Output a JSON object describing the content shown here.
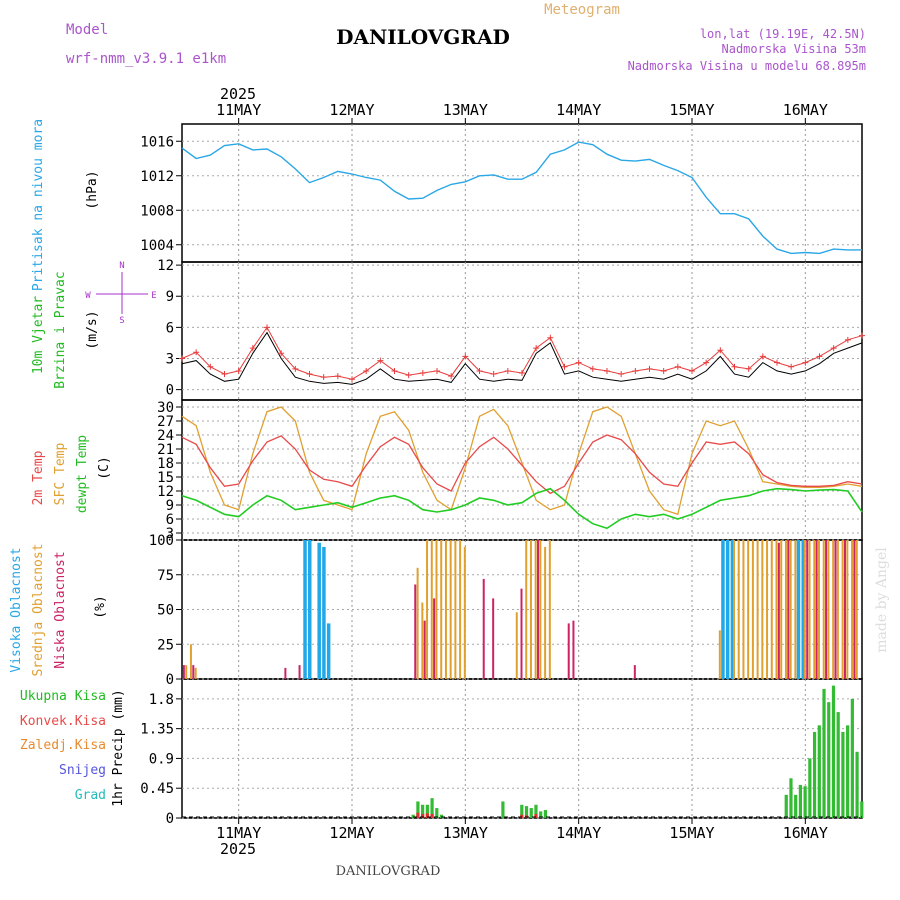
{
  "header": {
    "model_label": "Model",
    "model_name": "wrf-nmm_v3.9.1 e1km",
    "station": "DANILOVGRAD",
    "product": "Meteogram",
    "lonlat": "lon,lat (19.19E, 42.5N)",
    "elevation": "Nadmorska Visina 53m",
    "model_elevation": "Nadmorska Visina u modelu 68.895m",
    "watermark": "made by Angel",
    "footer_station": "DANILOVGRAD"
  },
  "time_axis": {
    "year": "2025",
    "day_labels": [
      "11MAY",
      "12MAY",
      "13MAY",
      "14MAY",
      "15MAY",
      "16MAY"
    ],
    "range_hours": [
      0,
      144
    ]
  },
  "colors": {
    "pressure": "#2aa7e6",
    "wind_speed": "#000000",
    "gust": "#e83c3c",
    "temp2m": "#e84a4a",
    "sfc": "#e0a030",
    "dew": "#22cc22",
    "cloud_high": "#20a8e8",
    "cloud_mid": "#e0a030",
    "cloud_low": "#cc2266",
    "precip": "#33bb33",
    "precip_conv": "#e03030",
    "model": "#aa55cc",
    "panel_label_green": "#22bb22",
    "panel_label_blue": "#2aa7e6",
    "panel_label_orange": "#e0a030",
    "panel_label_red": "#e84a4a",
    "panel_label_magenta": "#cc2266",
    "panel_label_purple": "#aa33cc"
  },
  "panels": {
    "pressure": {
      "label": "Pritisak na nivou mora",
      "unit": "(hPa)",
      "ticks": [
        "1016",
        "1012",
        "1008",
        "1004"
      ]
    },
    "wind": {
      "label1": "10m Vjetar",
      "label2": "Brzina i Pravac",
      "unit": "(m/s)",
      "ticks": [
        "12",
        "9",
        "6",
        "3",
        "0"
      ],
      "compass": {
        "n": "N",
        "e": "E",
        "w": "W",
        "s": "S"
      }
    },
    "temperature": {
      "label1": "2m Temp",
      "label2": "SFC Temp",
      "label3": "dewpt Temp",
      "unit": "(C)",
      "ticks": [
        "30",
        "27",
        "24",
        "21",
        "18",
        "15",
        "12",
        "9",
        "6",
        "3"
      ]
    },
    "cloud": {
      "label1": "Visoka Oblacnost",
      "label2": "Srednja Oblacnost",
      "label3": "Niska Oblacnost",
      "unit": "(%)",
      "ticks": [
        "100",
        "75",
        "50",
        "25",
        "0"
      ]
    },
    "precip": {
      "legend": [
        "Ukupna Kisa",
        "Konvek.Kisa",
        "Zaledj.Kisa",
        "Snijeg",
        "Grad"
      ],
      "unit": "1hr Precip (mm)",
      "ticks": [
        "1.8",
        "1.35",
        "0.9",
        "0.45",
        "0"
      ]
    }
  },
  "chart_data": [
    {
      "type": "line",
      "name": "pressure",
      "ylim": [
        1002,
        1018
      ],
      "x": [
        0,
        3,
        6,
        9,
        12,
        15,
        18,
        21,
        24,
        27,
        30,
        33,
        36,
        39,
        42,
        45,
        48,
        51,
        54,
        57,
        60,
        63,
        66,
        69,
        72,
        75,
        78,
        81,
        84,
        87,
        90,
        93,
        96,
        99,
        102,
        105,
        108,
        111,
        114,
        117,
        120,
        123,
        126,
        129,
        132,
        135,
        138,
        141,
        144
      ],
      "values": [
        1015.2,
        1014,
        1014.4,
        1015.5,
        1015.7,
        1015,
        1015.1,
        1014.2,
        1012.8,
        1011.2,
        1011.8,
        1012.5,
        1012.2,
        1011.8,
        1011.5,
        1010.2,
        1009.3,
        1009.4,
        1010.3,
        1011.0,
        1011.3,
        1012.0,
        1012.1,
        1011.6,
        1011.6,
        1012.4,
        1014.5,
        1015.0,
        1015.9,
        1015.6,
        1014.5,
        1013.8,
        1013.7,
        1013.9,
        1013.2,
        1012.6,
        1011.8,
        1009.5,
        1007.6,
        1007.6,
        1007.0,
        1005.0,
        1003.5,
        1003.0,
        1003.1,
        1003.0,
        1003.5,
        1003.4,
        1003.4
      ]
    },
    {
      "type": "line",
      "name": "wind",
      "ylim": [
        -1,
        12.3
      ],
      "x": [
        0,
        3,
        6,
        9,
        12,
        15,
        18,
        21,
        24,
        27,
        30,
        33,
        36,
        39,
        42,
        45,
        48,
        51,
        54,
        57,
        60,
        63,
        66,
        69,
        72,
        75,
        78,
        81,
        84,
        87,
        90,
        93,
        96,
        99,
        102,
        105,
        108,
        111,
        114,
        117,
        120,
        123,
        126,
        129,
        132,
        135,
        138,
        141,
        144
      ],
      "series": [
        {
          "values": [
            2.5,
            2.8,
            1.5,
            0.8,
            1.0,
            3.5,
            5.5,
            3.0,
            1.2,
            0.8,
            0.6,
            0.7,
            0.5,
            1.0,
            2.0,
            1.0,
            0.8,
            0.9,
            1.0,
            0.7,
            2.5,
            1.0,
            0.8,
            1.0,
            0.9,
            3.5,
            4.5,
            1.5,
            1.8,
            1.2,
            1.0,
            0.8,
            1.0,
            1.2,
            1.0,
            1.5,
            1.0,
            1.8,
            3.2,
            1.5,
            1.2,
            2.6,
            1.8,
            1.5,
            1.8,
            2.5,
            3.5,
            4.0,
            4.5
          ]
        },
        {
          "values": [
            3.0,
            3.6,
            2.2,
            1.5,
            1.8,
            4.0,
            6.0,
            3.5,
            2.0,
            1.5,
            1.2,
            1.3,
            1.0,
            1.8,
            2.8,
            1.8,
            1.4,
            1.6,
            1.8,
            1.3,
            3.2,
            1.8,
            1.5,
            1.8,
            1.6,
            4.0,
            5.0,
            2.2,
            2.6,
            2.0,
            1.8,
            1.5,
            1.8,
            2.0,
            1.8,
            2.2,
            1.8,
            2.6,
            3.8,
            2.2,
            2.0,
            3.2,
            2.6,
            2.2,
            2.6,
            3.2,
            4.0,
            4.8,
            5.2
          ]
        }
      ]
    },
    {
      "type": "line",
      "name": "temperature",
      "ylim": [
        1.5,
        31.5
      ],
      "x": [
        0,
        3,
        6,
        9,
        12,
        15,
        18,
        21,
        24,
        27,
        30,
        33,
        36,
        39,
        42,
        45,
        48,
        51,
        54,
        57,
        60,
        63,
        66,
        69,
        72,
        75,
        78,
        81,
        84,
        87,
        90,
        93,
        96,
        99,
        102,
        105,
        108,
        111,
        114,
        117,
        120,
        123,
        126,
        129,
        132,
        135,
        138,
        141,
        144
      ],
      "series": [
        {
          "values": [
            23.5,
            22.0,
            17.0,
            13.0,
            13.5,
            18.5,
            22.5,
            23.8,
            21.0,
            16.5,
            14.5,
            14.0,
            13.0,
            17.5,
            21.5,
            23.5,
            22.0,
            17.0,
            13.5,
            12.0,
            18.0,
            21.5,
            23.5,
            21.0,
            17.5,
            14.0,
            11.5,
            13.0,
            18.0,
            22.5,
            24.0,
            23.0,
            20.0,
            16.0,
            13.5,
            13.0,
            18.0,
            22.5,
            22.0,
            22.5,
            20.0,
            15.5,
            13.8,
            13.2,
            13.0,
            13.0,
            13.2,
            14.0,
            13.5
          ]
        },
        {
          "values": [
            28.0,
            26.0,
            16.0,
            9.0,
            8.0,
            20.0,
            29.0,
            30.0,
            27.0,
            16.0,
            10.0,
            9.0,
            8.0,
            20.0,
            28.0,
            29.0,
            25.0,
            16.0,
            10.0,
            8.0,
            17.0,
            28.0,
            29.5,
            26.0,
            18.0,
            10.0,
            8.0,
            9.0,
            20.0,
            29.0,
            30.0,
            28.0,
            20.0,
            12.0,
            8.0,
            7.0,
            20.0,
            27.0,
            26.0,
            27.0,
            21.0,
            14.0,
            13.5,
            13.0,
            12.8,
            12.8,
            13.0,
            13.5,
            13.0
          ]
        },
        {
          "values": [
            11.0,
            10.0,
            8.5,
            7.0,
            6.5,
            9.0,
            11.0,
            10.0,
            8.0,
            8.5,
            9.0,
            9.5,
            8.5,
            9.5,
            10.5,
            11.0,
            10.0,
            8.0,
            7.5,
            8.0,
            9.0,
            10.5,
            10.0,
            9.0,
            9.5,
            11.5,
            12.5,
            10.0,
            7.0,
            5.0,
            4.0,
            6.0,
            7.0,
            6.5,
            7.0,
            6.0,
            7.0,
            8.5,
            10.0,
            10.5,
            11.0,
            12.0,
            12.5,
            12.3,
            12.0,
            12.2,
            12.3,
            12.0,
            7.5
          ]
        }
      ]
    },
    {
      "type": "bar",
      "name": "cloud",
      "ylim": [
        0,
        100
      ],
      "series": [
        {
          "points": [
            [
              26,
              100
            ],
            [
              27,
              100
            ],
            [
              29,
              98
            ],
            [
              30,
              95
            ],
            [
              31,
              40
            ],
            [
              114.5,
              100
            ],
            [
              115.5,
              100
            ],
            [
              116.5,
              100
            ],
            [
              130.5,
              100
            ],
            [
              131.5,
              100
            ]
          ]
        },
        {
          "points": [
            [
              1,
              10
            ],
            [
              2,
              25
            ],
            [
              3,
              8
            ],
            [
              50,
              80
            ],
            [
              51,
              55
            ],
            [
              52,
              100
            ],
            [
              53,
              100
            ],
            [
              54,
              100
            ],
            [
              55,
              100
            ],
            [
              56,
              100
            ],
            [
              57,
              100
            ],
            [
              58,
              100
            ],
            [
              59,
              100
            ],
            [
              60,
              95
            ],
            [
              71,
              48
            ],
            [
              73,
              100
            ],
            [
              74,
              100
            ],
            [
              75,
              100
            ],
            [
              76,
              100
            ],
            [
              77,
              95
            ],
            [
              78,
              100
            ],
            [
              114,
              35
            ],
            [
              117,
              100
            ],
            [
              118,
              100
            ],
            [
              119,
              100
            ],
            [
              120,
              100
            ],
            [
              121,
              100
            ],
            [
              122,
              100
            ],
            [
              123,
              100
            ],
            [
              124,
              100
            ],
            [
              125,
              100
            ],
            [
              126,
              100
            ],
            [
              127,
              100
            ],
            [
              128,
              100
            ],
            [
              129,
              100
            ],
            [
              130,
              100
            ],
            [
              132,
              100
            ],
            [
              133,
              100
            ],
            [
              134,
              100
            ],
            [
              135,
              100
            ],
            [
              136,
              100
            ],
            [
              137,
              100
            ],
            [
              138,
              100
            ],
            [
              139,
              100
            ],
            [
              140,
              100
            ],
            [
              141,
              100
            ],
            [
              142,
              100
            ],
            [
              143,
              100
            ]
          ]
        },
        {
          "points": [
            [
              0.5,
              10
            ],
            [
              2.5,
              10
            ],
            [
              22,
              8
            ],
            [
              25,
              10
            ],
            [
              49.5,
              68
            ],
            [
              51.5,
              42
            ],
            [
              53.5,
              58
            ],
            [
              64,
              72
            ],
            [
              66,
              58
            ],
            [
              72,
              65
            ],
            [
              75.5,
              100
            ],
            [
              82,
              40
            ],
            [
              83,
              42
            ],
            [
              96,
              10
            ],
            [
              126.5,
              98
            ],
            [
              128.5,
              100
            ],
            [
              132.5,
              100
            ],
            [
              134.5,
              100
            ],
            [
              136.5,
              100
            ],
            [
              138.5,
              100
            ],
            [
              140.5,
              100
            ],
            [
              142.5,
              100
            ]
          ]
        }
      ]
    },
    {
      "type": "bar",
      "name": "precip",
      "ylim": [
        0,
        2.1
      ],
      "series": [
        {
          "points": [
            [
              49,
              0.05
            ],
            [
              50,
              0.25
            ],
            [
              51,
              0.2
            ],
            [
              52,
              0.2
            ],
            [
              53,
              0.3
            ],
            [
              54,
              0.15
            ],
            [
              55,
              0.05
            ],
            [
              68,
              0.25
            ],
            [
              72,
              0.2
            ],
            [
              73,
              0.18
            ],
            [
              74,
              0.15
            ],
            [
              75,
              0.2
            ],
            [
              76,
              0.1
            ],
            [
              77,
              0.12
            ],
            [
              128,
              0.35
            ],
            [
              129,
              0.6
            ],
            [
              130,
              0.35
            ],
            [
              131,
              0.5
            ],
            [
              132,
              0.48
            ],
            [
              133,
              0.9
            ],
            [
              134,
              1.3
            ],
            [
              135,
              1.4
            ],
            [
              136,
              1.95
            ],
            [
              137,
              1.75
            ],
            [
              138,
              2.0
            ],
            [
              139,
              1.6
            ],
            [
              140,
              1.3
            ],
            [
              141,
              1.4
            ],
            [
              142,
              1.8
            ],
            [
              143,
              1.0
            ],
            [
              144,
              0.25
            ]
          ]
        },
        {
          "points": [
            [
              50,
              0.08
            ],
            [
              51,
              0.06
            ],
            [
              52,
              0.07
            ],
            [
              53,
              0.06
            ],
            [
              72,
              0.05
            ],
            [
              73,
              0.04
            ],
            [
              75,
              0.06
            ]
          ]
        }
      ]
    }
  ]
}
